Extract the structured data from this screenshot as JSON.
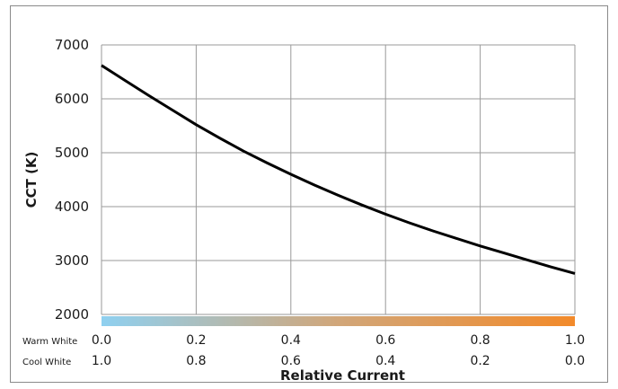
{
  "chart_data": {
    "type": "line",
    "title": "",
    "ylabel": "CCT (K)",
    "xlabel": "Relative Current",
    "xlim": [
      0,
      1
    ],
    "ylim": [
      2000,
      7000
    ],
    "grid": true,
    "yticks": [
      "7000",
      "6000",
      "5000",
      "4000",
      "3000",
      "2000"
    ],
    "x_rows": [
      {
        "label": "Warm White",
        "ticks": [
          "0.0",
          "0.2",
          "0.4",
          "0.6",
          "0.8",
          "1.0"
        ]
      },
      {
        "label": "Cool White",
        "ticks": [
          "1.0",
          "0.8",
          "0.6",
          "0.4",
          "0.2",
          "0.0"
        ]
      }
    ],
    "gradient_colors": [
      "#8fd0f0",
      "#d1a679",
      "#f28a2a"
    ],
    "line_color": "#000000",
    "series": [
      {
        "x": [
          0.0,
          0.05,
          0.1,
          0.15,
          0.2,
          0.25,
          0.3,
          0.35,
          0.4,
          0.45,
          0.5,
          0.55,
          0.6,
          0.65,
          0.7,
          0.75,
          0.8,
          0.85,
          0.9,
          0.95,
          1.0
        ],
        "y": [
          6620,
          6340,
          6060,
          5790,
          5520,
          5270,
          5030,
          4810,
          4600,
          4400,
          4210,
          4030,
          3860,
          3700,
          3550,
          3410,
          3270,
          3140,
          3010,
          2880,
          2760
        ]
      }
    ]
  }
}
